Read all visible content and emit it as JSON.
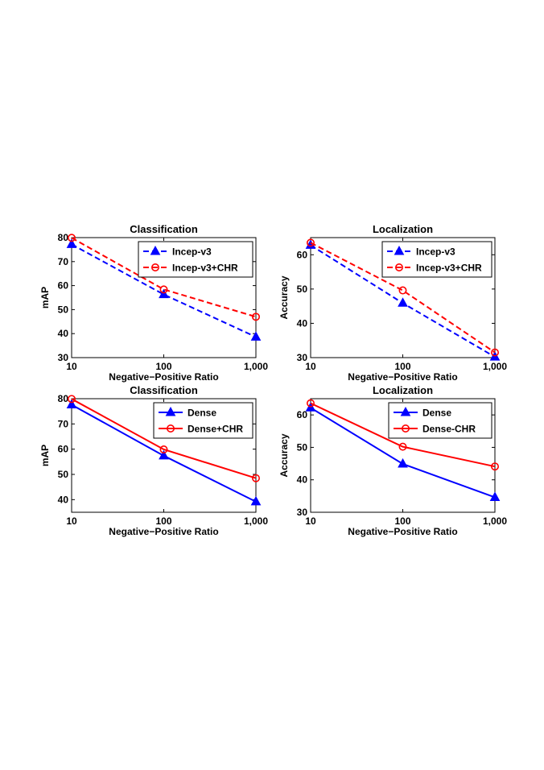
{
  "chart_data": [
    {
      "type": "line",
      "title": "Classification",
      "xlabel": "Negative−Positive Ratio",
      "ylabel": "mAP",
      "x": [
        10,
        100,
        1000
      ],
      "xscale": "log",
      "xticklabels": [
        "10",
        "100",
        "1,000"
      ],
      "ylim": [
        30,
        80
      ],
      "yticks": [
        30,
        40,
        50,
        60,
        70,
        80
      ],
      "grid": false,
      "legend": "top-right",
      "series": [
        {
          "name": "Incep-v3",
          "values": [
            77.2,
            56.3,
            38.6
          ],
          "color": "#0000ff",
          "linestyle": "dashed",
          "marker": "triangle"
        },
        {
          "name": "Incep-v3+CHR",
          "values": [
            79.9,
            58.4,
            47.0
          ],
          "color": "#ff0000",
          "linestyle": "dashed",
          "marker": "circle"
        }
      ]
    },
    {
      "type": "line",
      "title": "Localization",
      "xlabel": "Negative−Positive Ratio",
      "ylabel": "Accuracy",
      "x": [
        10,
        100,
        1000
      ],
      "xscale": "log",
      "xticklabels": [
        "10",
        "100",
        "1,000"
      ],
      "ylim": [
        30,
        65
      ],
      "yticks": [
        30,
        40,
        50,
        60
      ],
      "grid": false,
      "legend": "top-right",
      "series": [
        {
          "name": "Incep-v3",
          "values": [
            62.8,
            45.9,
            30.2
          ],
          "color": "#0000ff",
          "linestyle": "dashed",
          "marker": "triangle"
        },
        {
          "name": "Incep-v3+CHR",
          "values": [
            63.5,
            49.6,
            31.5
          ],
          "color": "#ff0000",
          "linestyle": "dashed",
          "marker": "circle"
        }
      ]
    },
    {
      "type": "line",
      "title": "Classification",
      "xlabel": "Negative−Positive Ratio",
      "ylabel": "mAP",
      "x": [
        10,
        100,
        1000
      ],
      "xscale": "log",
      "xticklabels": [
        "10",
        "100",
        "1,000"
      ],
      "ylim": [
        35,
        80
      ],
      "yticks": [
        40,
        50,
        60,
        70,
        80
      ],
      "grid": false,
      "legend": "top-right",
      "series": [
        {
          "name": "Dense",
          "values": [
            77.6,
            57.4,
            39.2
          ],
          "color": "#0000ff",
          "linestyle": "solid",
          "marker": "triangle"
        },
        {
          "name": "Dense+CHR",
          "values": [
            79.9,
            59.9,
            48.5
          ],
          "color": "#ff0000",
          "linestyle": "solid",
          "marker": "circle"
        }
      ]
    },
    {
      "type": "line",
      "title": "Localization",
      "xlabel": "Negative−Positive Ratio",
      "ylabel": "Accuracy",
      "x": [
        10,
        100,
        1000
      ],
      "xscale": "log",
      "xticklabels": [
        "10",
        "100",
        "1,000"
      ],
      "ylim": [
        30,
        65
      ],
      "yticks": [
        30,
        40,
        50,
        60
      ],
      "grid": false,
      "legend": "top-right",
      "series": [
        {
          "name": "Dense",
          "values": [
            62.2,
            44.9,
            34.6
          ],
          "color": "#0000ff",
          "linestyle": "solid",
          "marker": "triangle"
        },
        {
          "name": "Dense-CHR",
          "values": [
            63.6,
            50.2,
            44.1
          ],
          "color": "#ff0000",
          "linestyle": "solid",
          "marker": "circle"
        }
      ]
    }
  ]
}
